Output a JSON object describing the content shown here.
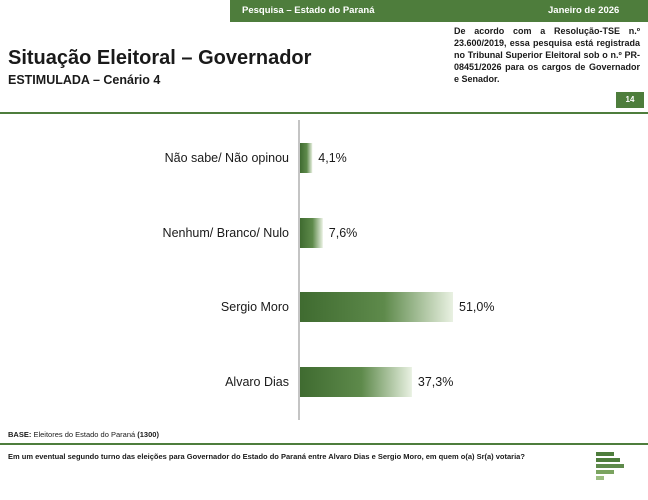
{
  "header": {
    "survey_label": "Pesquisa – Estado do Paraná",
    "date_label": "Janeiro de 2026"
  },
  "title": "Situação Eleitoral – Governador",
  "subtitle": "ESTIMULADA – Cenário 4",
  "legal_note": "De acordo com a Resolução-TSE n.º 23.600/2019, essa pesquisa está registrada no Tribunal Superior Eleitoral sob o n.º PR-08451/2026 para os cargos de Governador e Senador.",
  "page_number": "14",
  "base": {
    "label": "BASE:",
    "text": "Eleitores do Estado do Paraná",
    "count": "(1300)"
  },
  "question": "Em um eventual segundo turno das eleições para Governador do Estado do Paraná entre Alvaro Dias e Sergio Moro, em quem o(a) Sr(a) votaria?",
  "colors": {
    "brand_green": "#4e7d3c",
    "bar_dark": "#3f6b30",
    "bar_light": "#e9f1e2"
  },
  "chart_data": {
    "type": "bar",
    "orientation": "horizontal",
    "categories": [
      "Não sabe/ Não opinou",
      "Nenhum/ Branco/ Nulo",
      "Sergio Moro",
      "Alvaro Dias"
    ],
    "values": [
      4.1,
      7.6,
      51.0,
      37.3
    ],
    "value_labels": [
      "4,1%",
      "7,6%",
      "51,0%",
      "37,3%"
    ],
    "unit": "%",
    "xlim": [
      0,
      100
    ],
    "grid": false,
    "legend": "none"
  }
}
